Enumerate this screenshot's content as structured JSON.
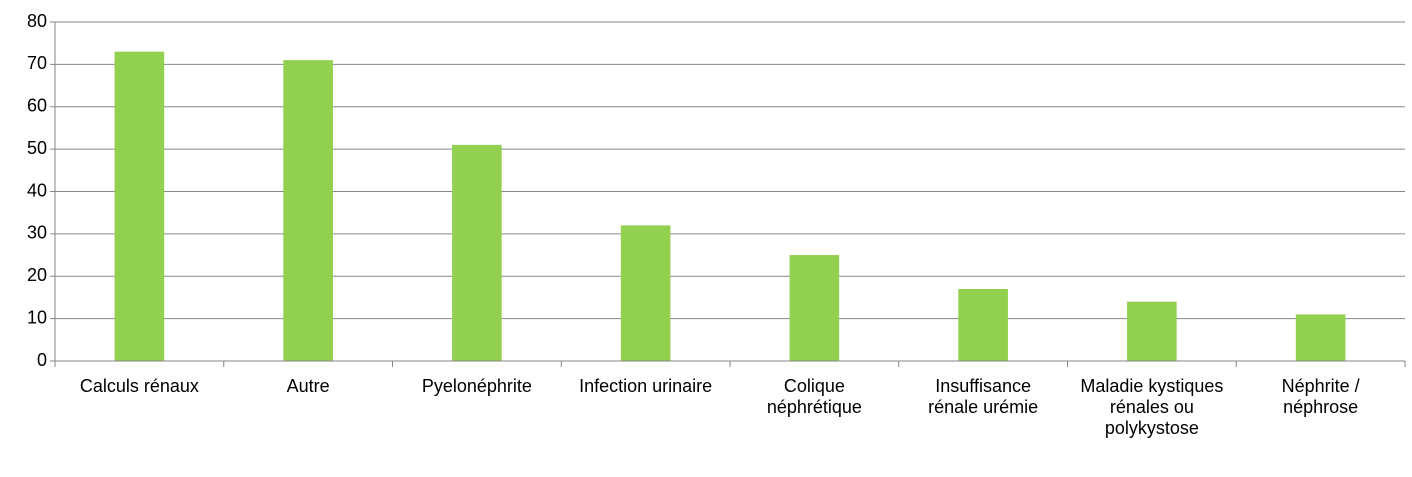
{
  "chart_data": {
    "type": "bar",
    "categories": [
      "Calculs rénaux",
      "Autre",
      "Pyelonéphrite",
      "Infection urinaire",
      "Colique néphrétique",
      "Insuffisance rénale urémie",
      "Maladie kystiques rénales ou polykystose",
      "Néphrite / néphrose"
    ],
    "values": [
      73,
      71,
      51,
      32,
      25,
      17,
      14,
      11
    ],
    "color": "#92d050",
    "ylim": [
      0,
      80
    ],
    "yticks": [
      0,
      10,
      20,
      30,
      40,
      50,
      60,
      70,
      80
    ],
    "grid": true
  }
}
